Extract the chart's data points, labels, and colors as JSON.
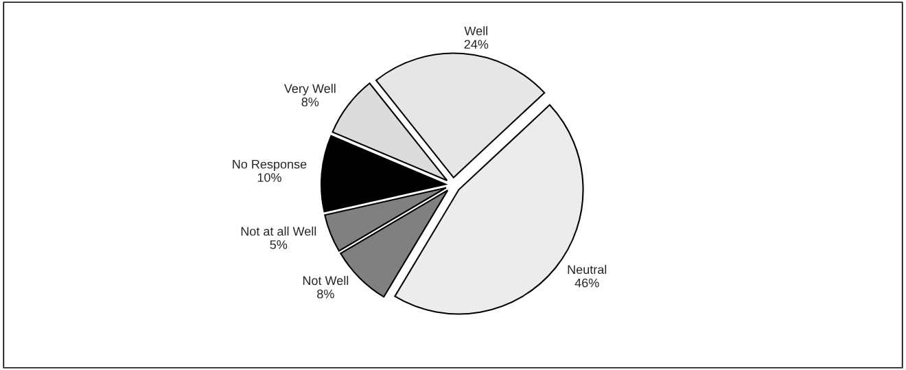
{
  "chart_data": {
    "type": "pie",
    "categories": [
      "Well",
      "Very Well",
      "No Response",
      "Not at all Well",
      "Not Well",
      "Neutral"
    ],
    "values": [
      24,
      8,
      10,
      5,
      8,
      46
    ],
    "colors": [
      "#e6e6e6",
      "#dcdcdc",
      "#000000",
      "#808080",
      "#808080",
      "#ececec"
    ],
    "value_labels": [
      "24%",
      "8%",
      "10%",
      "5%",
      "8%",
      "46%"
    ],
    "legend": false
  }
}
